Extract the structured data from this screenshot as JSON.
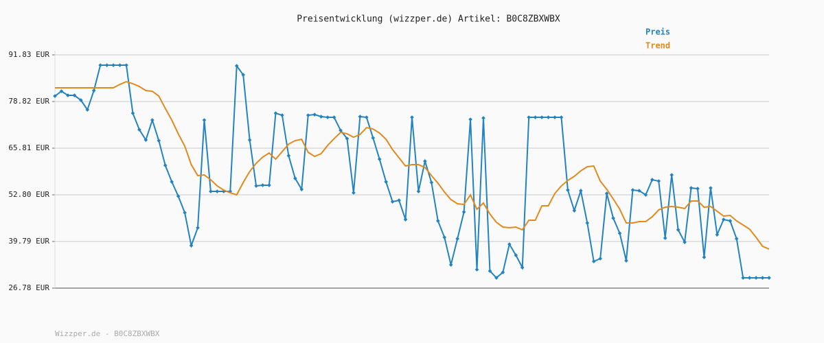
{
  "chart_data": {
    "type": "line",
    "title": "Preisentwicklung (wizzper.de) Artikel: B0C8ZBXWBX",
    "footer": "Wizzper.de - B0C8ZBXWBX",
    "grid": true,
    "legend": "top-right",
    "ylim": [
      26.78,
      91.83
    ],
    "yticks": [
      {
        "value": 26.78,
        "label": "26.78 EUR"
      },
      {
        "value": 39.79,
        "label": "39.79 EUR"
      },
      {
        "value": 52.8,
        "label": "52.80 EUR"
      },
      {
        "value": 65.81,
        "label": "65.81 EUR"
      },
      {
        "value": 78.82,
        "label": "78.82 EUR"
      },
      {
        "value": 91.83,
        "label": "91.83 EUR"
      }
    ],
    "categories": [
      null,
      null,
      null,
      null,
      null,
      null,
      null,
      null,
      null,
      null,
      null,
      null,
      null,
      null,
      null,
      null,
      null,
      null,
      null,
      null,
      null,
      null,
      null,
      null,
      null,
      null,
      null,
      null,
      null,
      null,
      null,
      null,
      null,
      null,
      null,
      null,
      null,
      null,
      null,
      null,
      null,
      null,
      null,
      null,
      null,
      null,
      null,
      null,
      null,
      null,
      null,
      null,
      null,
      null,
      null,
      null,
      null,
      null,
      null,
      null,
      null,
      null,
      null,
      null,
      null,
      null,
      null,
      null,
      null,
      null,
      null,
      null,
      null,
      null,
      null,
      null,
      null,
      null,
      null,
      null,
      null,
      null,
      null,
      null,
      null,
      null,
      null,
      null,
      null,
      null,
      null,
      null,
      null,
      null,
      null,
      null,
      null,
      null,
      null,
      null,
      null,
      null,
      null,
      null,
      null,
      null,
      null,
      null,
      null,
      null,
      null
    ],
    "series": [
      {
        "name": "Preis",
        "color": "#2383bf",
        "markers": true,
        "values": [
          80.34,
          81.69,
          80.54,
          80.54,
          79.2,
          76.52,
          81.88,
          88.95,
          88.95,
          88.95,
          88.95,
          88.95,
          75.56,
          70.97,
          68.1,
          73.65,
          67.91,
          61.02,
          56.43,
          52.41,
          47.82,
          38.64,
          43.61,
          73.65,
          53.75,
          53.75,
          53.75,
          53.75,
          88.76,
          86.27,
          68.1,
          55.28,
          55.48,
          55.48,
          75.56,
          74.99,
          63.7,
          57.39,
          54.33,
          74.99,
          75.18,
          74.61,
          74.41,
          74.41,
          70.78,
          68.48,
          53.37,
          74.61,
          74.41,
          68.67,
          62.74,
          56.43,
          50.88,
          51.27,
          45.91,
          74.41,
          53.75,
          62.17,
          56.24,
          45.53,
          40.94,
          33.28,
          40.55,
          48.01,
          73.84,
          31.95,
          74.22,
          31.56,
          29.65,
          31.18,
          39.02,
          35.96,
          32.52,
          74.41,
          74.41,
          74.41,
          74.41,
          74.41,
          74.41,
          54.14,
          48.4,
          53.94,
          44.95,
          34.24,
          35.01,
          53.18,
          46.29,
          42.08,
          34.43,
          54.14,
          53.94,
          52.8,
          57.01,
          56.62,
          40.74,
          58.34,
          43.04,
          39.6,
          54.71,
          54.52,
          35.39,
          54.71,
          41.7,
          45.91,
          45.53,
          40.55,
          29.65,
          29.65,
          29.65,
          29.65,
          29.65
        ]
      },
      {
        "name": "Trend",
        "color": "#e08a1e",
        "markers": false,
        "values": [
          82.64,
          82.64,
          82.64,
          82.64,
          82.64,
          82.64,
          82.64,
          82.64,
          82.64,
          82.64,
          83.6,
          84.36,
          83.79,
          83.02,
          81.88,
          81.68,
          80.34,
          76.9,
          73.65,
          69.82,
          66.38,
          61.21,
          58.15,
          58.34,
          57.01,
          55.28,
          54.14,
          53.37,
          52.8,
          56.24,
          59.3,
          61.6,
          63.32,
          64.47,
          62.74,
          64.85,
          66.95,
          67.91,
          68.29,
          64.66,
          63.51,
          64.27,
          66.57,
          68.48,
          70.21,
          69.82,
          68.87,
          69.63,
          71.54,
          71.16,
          70.01,
          68.29,
          65.42,
          63.13,
          60.83,
          61.21,
          61.21,
          60.45,
          58.15,
          56.05,
          53.56,
          51.46,
          50.31,
          50.12,
          52.8,
          48.78,
          50.5,
          47.44,
          45.14,
          43.81,
          43.61,
          43.81,
          43.04,
          45.72,
          45.72,
          49.74,
          49.74,
          53.18,
          55.28,
          56.81,
          57.96,
          59.49,
          60.64,
          60.83,
          56.62,
          54.33,
          51.65,
          48.78,
          44.95,
          44.95,
          45.34,
          45.34,
          46.68,
          48.59,
          49.35,
          49.54,
          49.35,
          48.97,
          51.08,
          51.08,
          49.35,
          49.54,
          48.21,
          46.87,
          47.06,
          45.53,
          44.38,
          43.23,
          40.94,
          38.45,
          37.68
        ]
      }
    ]
  }
}
